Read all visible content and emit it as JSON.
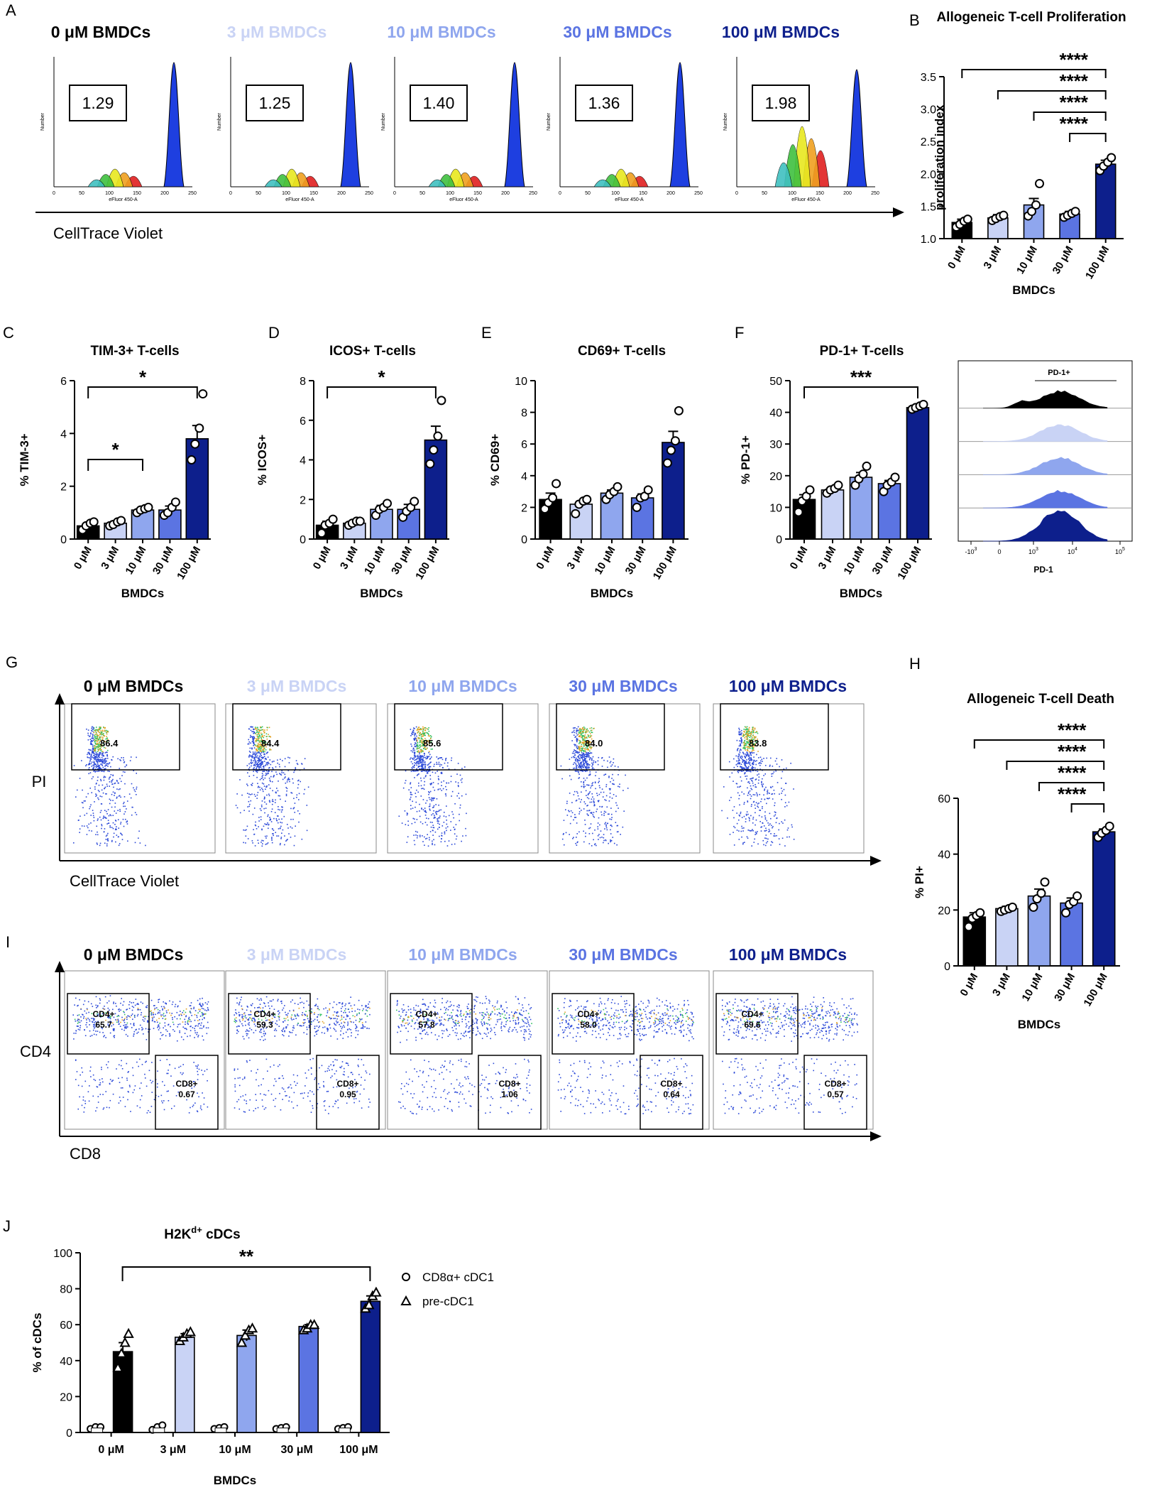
{
  "colors": {
    "c0": "#000000",
    "c3": "#c9d3f5",
    "c10": "#8fa6ee",
    "c30": "#5b74e2",
    "c100": "#0d1f8c",
    "hist": "#1e3fe0"
  },
  "panels": {
    "A": {
      "letter": "A",
      "titles": [
        "0 μM BMDCs",
        "3 μM BMDCs",
        "10 μM BMDCs",
        "30 μM BMDCs",
        "100 μM BMDCs"
      ],
      "indices": [
        "1.29",
        "1.25",
        "1.40",
        "1.36",
        "1.98"
      ],
      "hist_xlabel": "eFluor 450-A",
      "hist_ylabel": "Number",
      "arrow_label": "CellTrace Violet"
    },
    "G": {
      "letter": "G",
      "titles": [
        "0 μM BMDCs",
        "3 μM BMDCs",
        "10 μM BMDCs",
        "30 μM BMDCs",
        "100 μM BMDCs"
      ],
      "gates": [
        "86.4",
        "84.4",
        "85.6",
        "84.0",
        "83.8"
      ],
      "ylabel": "PI",
      "xlabel": "CellTrace Violet"
    },
    "I": {
      "letter": "I",
      "titles": [
        "0 μM BMDCs",
        "3 μM BMDCs",
        "10 μM BMDCs",
        "30 μM BMDCs",
        "100 μM BMDCs"
      ],
      "cd4_label": "CD4+",
      "cd8_label": "CD8+",
      "cd4": [
        "65.7",
        "59.3",
        "57.8",
        "58.0",
        "69.6"
      ],
      "cd8": [
        "0.67",
        "0.95",
        "1.06",
        "0.64",
        "0.57"
      ],
      "ylabel": "CD4",
      "xlabel": "CD8"
    },
    "F_hist": {
      "gate_label": "PD-1+",
      "xlabel": "PD-1",
      "ticks": [
        "-10",
        "3",
        "0",
        "10",
        "3",
        "10",
        "4",
        "10",
        "5"
      ]
    },
    "J_legend": {
      "items": [
        "CD8α+ cDC1",
        "pre-cDC1"
      ]
    }
  },
  "chart_data": [
    {
      "id": "B",
      "letter": "B",
      "type": "bar",
      "title": "Allogeneic T-cell Proliferation",
      "ylabel": "proliferation index",
      "xlabel": "BMDCs",
      "categories": [
        "0 μM",
        "3 μM",
        "10 μM",
        "30 μM",
        "100 μM"
      ],
      "values": [
        1.25,
        1.32,
        1.52,
        1.38,
        2.15
      ],
      "errors": [
        0.05,
        0.05,
        0.1,
        0.04,
        0.06
      ],
      "points": [
        [
          1.18,
          1.22,
          1.27,
          1.3
        ],
        [
          1.28,
          1.31,
          1.34,
          1.36
        ],
        [
          1.35,
          1.42,
          1.52,
          1.85
        ],
        [
          1.33,
          1.36,
          1.39,
          1.42
        ],
        [
          2.05,
          2.12,
          2.18,
          2.25
        ]
      ],
      "ylim": [
        1.0,
        3.5
      ],
      "yticks": [
        "1.0",
        "1.5",
        "2.0",
        "2.5",
        "3.0",
        "3.5"
      ],
      "sig": [
        {
          "from": 0,
          "to": 4,
          "label": "****"
        },
        {
          "from": 1,
          "to": 4,
          "label": "****"
        },
        {
          "from": 2,
          "to": 4,
          "label": "****"
        },
        {
          "from": 3,
          "to": 4,
          "label": "****"
        }
      ]
    },
    {
      "id": "C",
      "letter": "C",
      "type": "bar",
      "title": "TIM-3+ T-cells",
      "ylabel": "% TIM-3+",
      "xlabel": "BMDCs",
      "categories": [
        "0 μM",
        "3 μM",
        "10 μM",
        "30 μM",
        "100 μM"
      ],
      "values": [
        0.5,
        0.6,
        1.1,
        1.1,
        3.8
      ],
      "errors": [
        0.08,
        0.08,
        0.1,
        0.15,
        0.5
      ],
      "points": [
        [
          0.35,
          0.5,
          0.6,
          0.65
        ],
        [
          0.5,
          0.55,
          0.65,
          0.7
        ],
        [
          1.0,
          1.1,
          1.15,
          1.2
        ],
        [
          0.9,
          1.0,
          1.2,
          1.4
        ],
        [
          3.0,
          3.6,
          4.2,
          5.5
        ]
      ],
      "ylim": [
        0,
        6
      ],
      "yticks": [
        "0",
        "2",
        "4",
        "6"
      ],
      "sig": [
        {
          "from": 0,
          "to": 2,
          "label": "*"
        },
        {
          "from": 0,
          "to": 4,
          "label": "*"
        }
      ]
    },
    {
      "id": "D",
      "letter": "D",
      "type": "bar",
      "title": "ICOS+ T-cells",
      "ylabel": "% ICOS+",
      "xlabel": "BMDCs",
      "categories": [
        "0 μM",
        "3 μM",
        "10 μM",
        "30 μM",
        "100 μM"
      ],
      "values": [
        0.7,
        0.8,
        1.5,
        1.5,
        5.0
      ],
      "errors": [
        0.2,
        0.1,
        0.2,
        0.25,
        0.7
      ],
      "points": [
        [
          0.3,
          0.7,
          0.8,
          1.0
        ],
        [
          0.7,
          0.8,
          0.9,
          0.9
        ],
        [
          1.2,
          1.5,
          1.6,
          1.8
        ],
        [
          1.1,
          1.4,
          1.6,
          1.9
        ],
        [
          3.8,
          4.5,
          5.2,
          7.0
        ]
      ],
      "ylim": [
        0,
        8
      ],
      "yticks": [
        "0",
        "2",
        "4",
        "6",
        "8"
      ],
      "sig": [
        {
          "from": 0,
          "to": 4,
          "label": "*"
        }
      ]
    },
    {
      "id": "E",
      "letter": "E",
      "type": "bar",
      "title": "CD69+ T-cells",
      "ylabel": "% CD69+",
      "xlabel": "BMDCs",
      "categories": [
        "0 μM",
        "3 μM",
        "10 μM",
        "30 μM",
        "100 μM"
      ],
      "values": [
        2.5,
        2.2,
        2.9,
        2.6,
        6.1
      ],
      "errors": [
        0.4,
        0.2,
        0.2,
        0.25,
        0.7
      ],
      "points": [
        [
          1.9,
          2.3,
          2.6,
          3.5
        ],
        [
          1.6,
          2.2,
          2.4,
          2.5
        ],
        [
          2.5,
          2.8,
          3.0,
          3.3
        ],
        [
          2.0,
          2.6,
          2.7,
          3.1
        ],
        [
          4.8,
          5.6,
          6.2,
          8.1
        ]
      ],
      "ylim": [
        0,
        10
      ],
      "yticks": [
        "0",
        "2",
        "4",
        "6",
        "8",
        "10"
      ],
      "sig": []
    },
    {
      "id": "F",
      "letter": "F",
      "type": "bar",
      "title": "PD-1+ T-cells",
      "ylabel": "% PD-1+",
      "xlabel": "BMDCs",
      "categories": [
        "0 μM",
        "3 μM",
        "10 μM",
        "30 μM",
        "100 μM"
      ],
      "values": [
        12.5,
        15.5,
        19.5,
        17.5,
        41.5
      ],
      "errors": [
        1.5,
        0.8,
        1.5,
        1.0,
        0.4
      ],
      "points": [
        [
          8.5,
          12.0,
          13.5,
          15.5
        ],
        [
          14.5,
          15.5,
          16.0,
          17.0
        ],
        [
          17.0,
          19.0,
          20.5,
          23.0
        ],
        [
          15.0,
          17.0,
          18.0,
          19.5
        ],
        [
          41.0,
          41.5,
          42.0,
          42.5
        ]
      ],
      "ylim": [
        0,
        50
      ],
      "yticks": [
        "0",
        "10",
        "20",
        "30",
        "40",
        "50"
      ],
      "sig": [
        {
          "from": 0,
          "to": 4,
          "label": "***"
        }
      ]
    },
    {
      "id": "H",
      "letter": "H",
      "type": "bar",
      "title": "Allogeneic T-cell Death",
      "ylabel": "% PI+",
      "xlabel": "BMDCs",
      "categories": [
        "0 μM",
        "3 μM",
        "10 μM",
        "30 μM",
        "100 μM"
      ],
      "values": [
        17.5,
        20.5,
        25.0,
        22.5,
        48.0
      ],
      "errors": [
        1.5,
        0.8,
        2.5,
        1.8,
        1.0
      ],
      "points": [
        [
          14.0,
          17.0,
          18.0,
          19.0
        ],
        [
          19.5,
          20.0,
          20.5,
          21.0
        ],
        [
          21.0,
          24.0,
          26.0,
          30.0
        ],
        [
          19.0,
          22.0,
          23.0,
          25.0
        ],
        [
          46.0,
          47.5,
          48.5,
          50.0
        ]
      ],
      "ylim": [
        0,
        60
      ],
      "yticks": [
        "0",
        "20",
        "40",
        "60"
      ],
      "sig": [
        {
          "from": 0,
          "to": 4,
          "label": "****"
        },
        {
          "from": 1,
          "to": 4,
          "label": "****"
        },
        {
          "from": 2,
          "to": 4,
          "label": "****"
        },
        {
          "from": 3,
          "to": 4,
          "label": "****"
        }
      ]
    },
    {
      "id": "J",
      "letter": "J",
      "type": "bar",
      "title": "H2K",
      "title_sup": "d+",
      "title_rest": " cDCs",
      "ylabel": "% of cDCs",
      "xlabel": "BMDCs",
      "categories": [
        "0 μM",
        "3 μM",
        "10 μM",
        "30 μM",
        "100 μM"
      ],
      "series": [
        {
          "name": "CD8α+ cDC1",
          "values": [
            2.5,
            2.5,
            2.5,
            2.5,
            2.5
          ],
          "points": [
            [
              2,
              3,
              3
            ],
            [
              1.5,
              3,
              4
            ],
            [
              2,
              2.5,
              3
            ],
            [
              2,
              2.5,
              3
            ],
            [
              2,
              2.5,
              3
            ]
          ]
        },
        {
          "name": "pre-cDC1",
          "values": [
            45,
            53,
            54,
            59,
            73
          ],
          "errors": [
            5,
            2,
            3,
            1,
            3
          ],
          "points": [
            [
              36,
              44,
              50,
              55
            ],
            [
              51,
              53,
              55,
              56
            ],
            [
              50,
              54,
              57,
              58
            ],
            [
              57,
              58,
              60,
              60
            ],
            [
              69,
              71,
              76,
              78
            ]
          ]
        }
      ],
      "ylim": [
        0,
        100
      ],
      "yticks": [
        "0",
        "20",
        "40",
        "60",
        "80",
        "100"
      ],
      "sig": [
        {
          "from": 0,
          "to": 4,
          "label": "**"
        }
      ]
    }
  ]
}
